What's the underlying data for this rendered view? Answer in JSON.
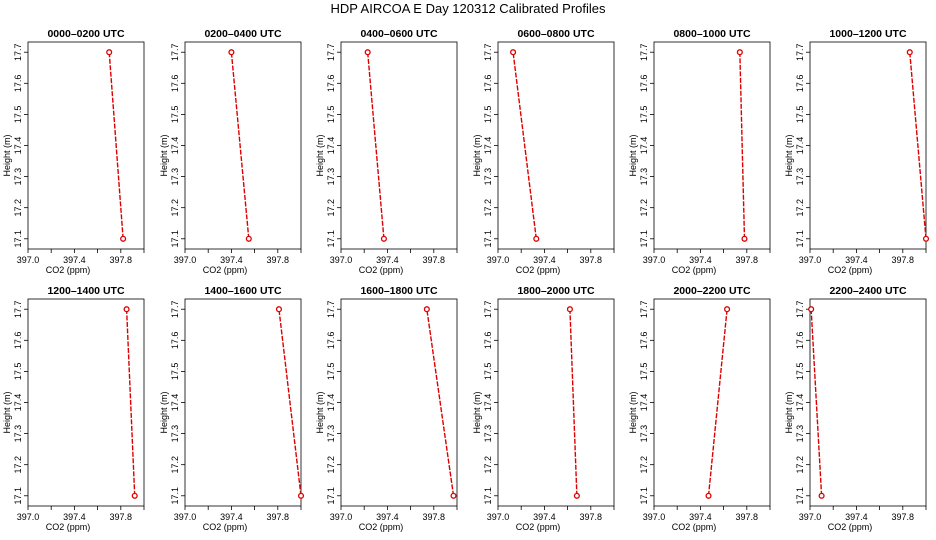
{
  "title": "HDP AIRCOA E  Day 120312  Calibrated Profiles",
  "colors": {
    "series": "#dd0000",
    "axis": "#000000"
  },
  "chart_data": [
    {
      "type": "line",
      "title": "0000–0200 UTC",
      "xlabel": "CO2 (ppm)",
      "ylabel": "Height (m)",
      "xlim": [
        397.0,
        398.0
      ],
      "ylim": [
        17.08,
        17.72
      ],
      "xticks": [
        "397.0",
        "397.4",
        "397.8"
      ],
      "yticks": [
        "17.1",
        "17.2",
        "17.3",
        "17.4",
        "17.5",
        "17.6",
        "17.7"
      ],
      "x": [
        397.82,
        397.7
      ],
      "y": [
        17.1,
        17.7
      ]
    },
    {
      "type": "line",
      "title": "0200–0400 UTC",
      "xlabel": "CO2 (ppm)",
      "ylabel": "Height (m)",
      "xlim": [
        397.0,
        398.0
      ],
      "ylim": [
        17.08,
        17.72
      ],
      "xticks": [
        "397.0",
        "397.4",
        "397.8"
      ],
      "yticks": [
        "17.1",
        "17.2",
        "17.3",
        "17.4",
        "17.5",
        "17.6",
        "17.7"
      ],
      "x": [
        397.55,
        397.4
      ],
      "y": [
        17.1,
        17.7
      ]
    },
    {
      "type": "line",
      "title": "0400–0600 UTC",
      "xlabel": "CO2 (ppm)",
      "ylabel": "Height (m)",
      "xlim": [
        397.0,
        398.0
      ],
      "ylim": [
        17.08,
        17.72
      ],
      "xticks": [
        "397.0",
        "397.4",
        "397.8"
      ],
      "yticks": [
        "17.1",
        "17.2",
        "17.3",
        "17.4",
        "17.5",
        "17.6",
        "17.7"
      ],
      "x": [
        397.37,
        397.23
      ],
      "y": [
        17.1,
        17.7
      ]
    },
    {
      "type": "line",
      "title": "0600–0800 UTC",
      "xlabel": "CO2 (ppm)",
      "ylabel": "Height (m)",
      "xlim": [
        397.0,
        398.0
      ],
      "ylim": [
        17.08,
        17.72
      ],
      "xticks": [
        "397.0",
        "397.4",
        "397.8"
      ],
      "yticks": [
        "17.1",
        "17.2",
        "17.3",
        "17.4",
        "17.5",
        "17.6",
        "17.7"
      ],
      "x": [
        397.33,
        397.13
      ],
      "y": [
        17.1,
        17.7
      ]
    },
    {
      "type": "line",
      "title": "0800–1000 UTC",
      "xlabel": "CO2 (ppm)",
      "ylabel": "Height (m)",
      "xlim": [
        397.0,
        398.0
      ],
      "ylim": [
        17.08,
        17.72
      ],
      "xticks": [
        "397.0",
        "397.4",
        "397.8"
      ],
      "yticks": [
        "17.1",
        "17.2",
        "17.3",
        "17.4",
        "17.5",
        "17.6",
        "17.7"
      ],
      "x": [
        397.78,
        397.74
      ],
      "y": [
        17.1,
        17.7
      ]
    },
    {
      "type": "line",
      "title": "1000–1200 UTC",
      "xlabel": "CO2 (ppm)",
      "ylabel": "Height (m)",
      "xlim": [
        397.0,
        398.0
      ],
      "ylim": [
        17.08,
        17.72
      ],
      "xticks": [
        "397.0",
        "397.4",
        "397.8"
      ],
      "yticks": [
        "17.1",
        "17.2",
        "17.3",
        "17.4",
        "17.5",
        "17.6",
        "17.7"
      ],
      "x": [
        398.0,
        397.86
      ],
      "y": [
        17.1,
        17.7
      ]
    },
    {
      "type": "line",
      "title": "1200–1400 UTC",
      "xlabel": "CO2 (ppm)",
      "ylabel": "Height (m)",
      "xlim": [
        397.0,
        398.0
      ],
      "ylim": [
        17.08,
        17.72
      ],
      "xticks": [
        "397.0",
        "397.4",
        "397.8"
      ],
      "yticks": [
        "17.1",
        "17.2",
        "17.3",
        "17.4",
        "17.5",
        "17.6",
        "17.7"
      ],
      "x": [
        397.92,
        397.85
      ],
      "y": [
        17.1,
        17.7
      ]
    },
    {
      "type": "line",
      "title": "1400–1600 UTC",
      "xlabel": "CO2 (ppm)",
      "ylabel": "Height (m)",
      "xlim": [
        397.0,
        398.0
      ],
      "ylim": [
        17.08,
        17.72
      ],
      "xticks": [
        "397.0",
        "397.4",
        "397.8"
      ],
      "yticks": [
        "17.1",
        "17.2",
        "17.3",
        "17.4",
        "17.5",
        "17.6",
        "17.7"
      ],
      "x": [
        398.0,
        397.81
      ],
      "y": [
        17.1,
        17.7
      ]
    },
    {
      "type": "line",
      "title": "1600–1800 UTC",
      "xlabel": "CO2 (ppm)",
      "ylabel": "Height (m)",
      "xlim": [
        397.0,
        398.0
      ],
      "ylim": [
        17.08,
        17.72
      ],
      "xticks": [
        "397.0",
        "397.4",
        "397.8"
      ],
      "yticks": [
        "17.1",
        "17.2",
        "17.3",
        "17.4",
        "17.5",
        "17.6",
        "17.7"
      ],
      "x": [
        397.97,
        397.74
      ],
      "y": [
        17.1,
        17.7
      ]
    },
    {
      "type": "line",
      "title": "1800–2000 UTC",
      "xlabel": "CO2 (ppm)",
      "ylabel": "Height (m)",
      "xlim": [
        397.0,
        398.0
      ],
      "ylim": [
        17.08,
        17.72
      ],
      "xticks": [
        "397.0",
        "397.4",
        "397.8"
      ],
      "yticks": [
        "17.1",
        "17.2",
        "17.3",
        "17.4",
        "17.5",
        "17.6",
        "17.7"
      ],
      "x": [
        397.68,
        397.62
      ],
      "y": [
        17.1,
        17.7
      ]
    },
    {
      "type": "line",
      "title": "2000–2200 UTC",
      "xlabel": "CO2 (ppm)",
      "ylabel": "Height (m)",
      "xlim": [
        397.0,
        398.0
      ],
      "ylim": [
        17.08,
        17.72
      ],
      "xticks": [
        "397.0",
        "397.4",
        "397.8"
      ],
      "yticks": [
        "17.1",
        "17.2",
        "17.3",
        "17.4",
        "17.5",
        "17.6",
        "17.7"
      ],
      "x": [
        397.47,
        397.63
      ],
      "y": [
        17.1,
        17.7
      ]
    },
    {
      "type": "line",
      "title": "2200–2400 UTC",
      "xlabel": "CO2 (ppm)",
      "ylabel": "Height (m)",
      "xlim": [
        397.0,
        398.0
      ],
      "ylim": [
        17.08,
        17.72
      ],
      "xticks": [
        "397.0",
        "397.4",
        "397.8"
      ],
      "yticks": [
        "17.1",
        "17.2",
        "17.3",
        "17.4",
        "17.5",
        "17.6",
        "17.7"
      ],
      "x": [
        397.1,
        397.01
      ],
      "y": [
        17.1,
        17.7
      ]
    }
  ]
}
